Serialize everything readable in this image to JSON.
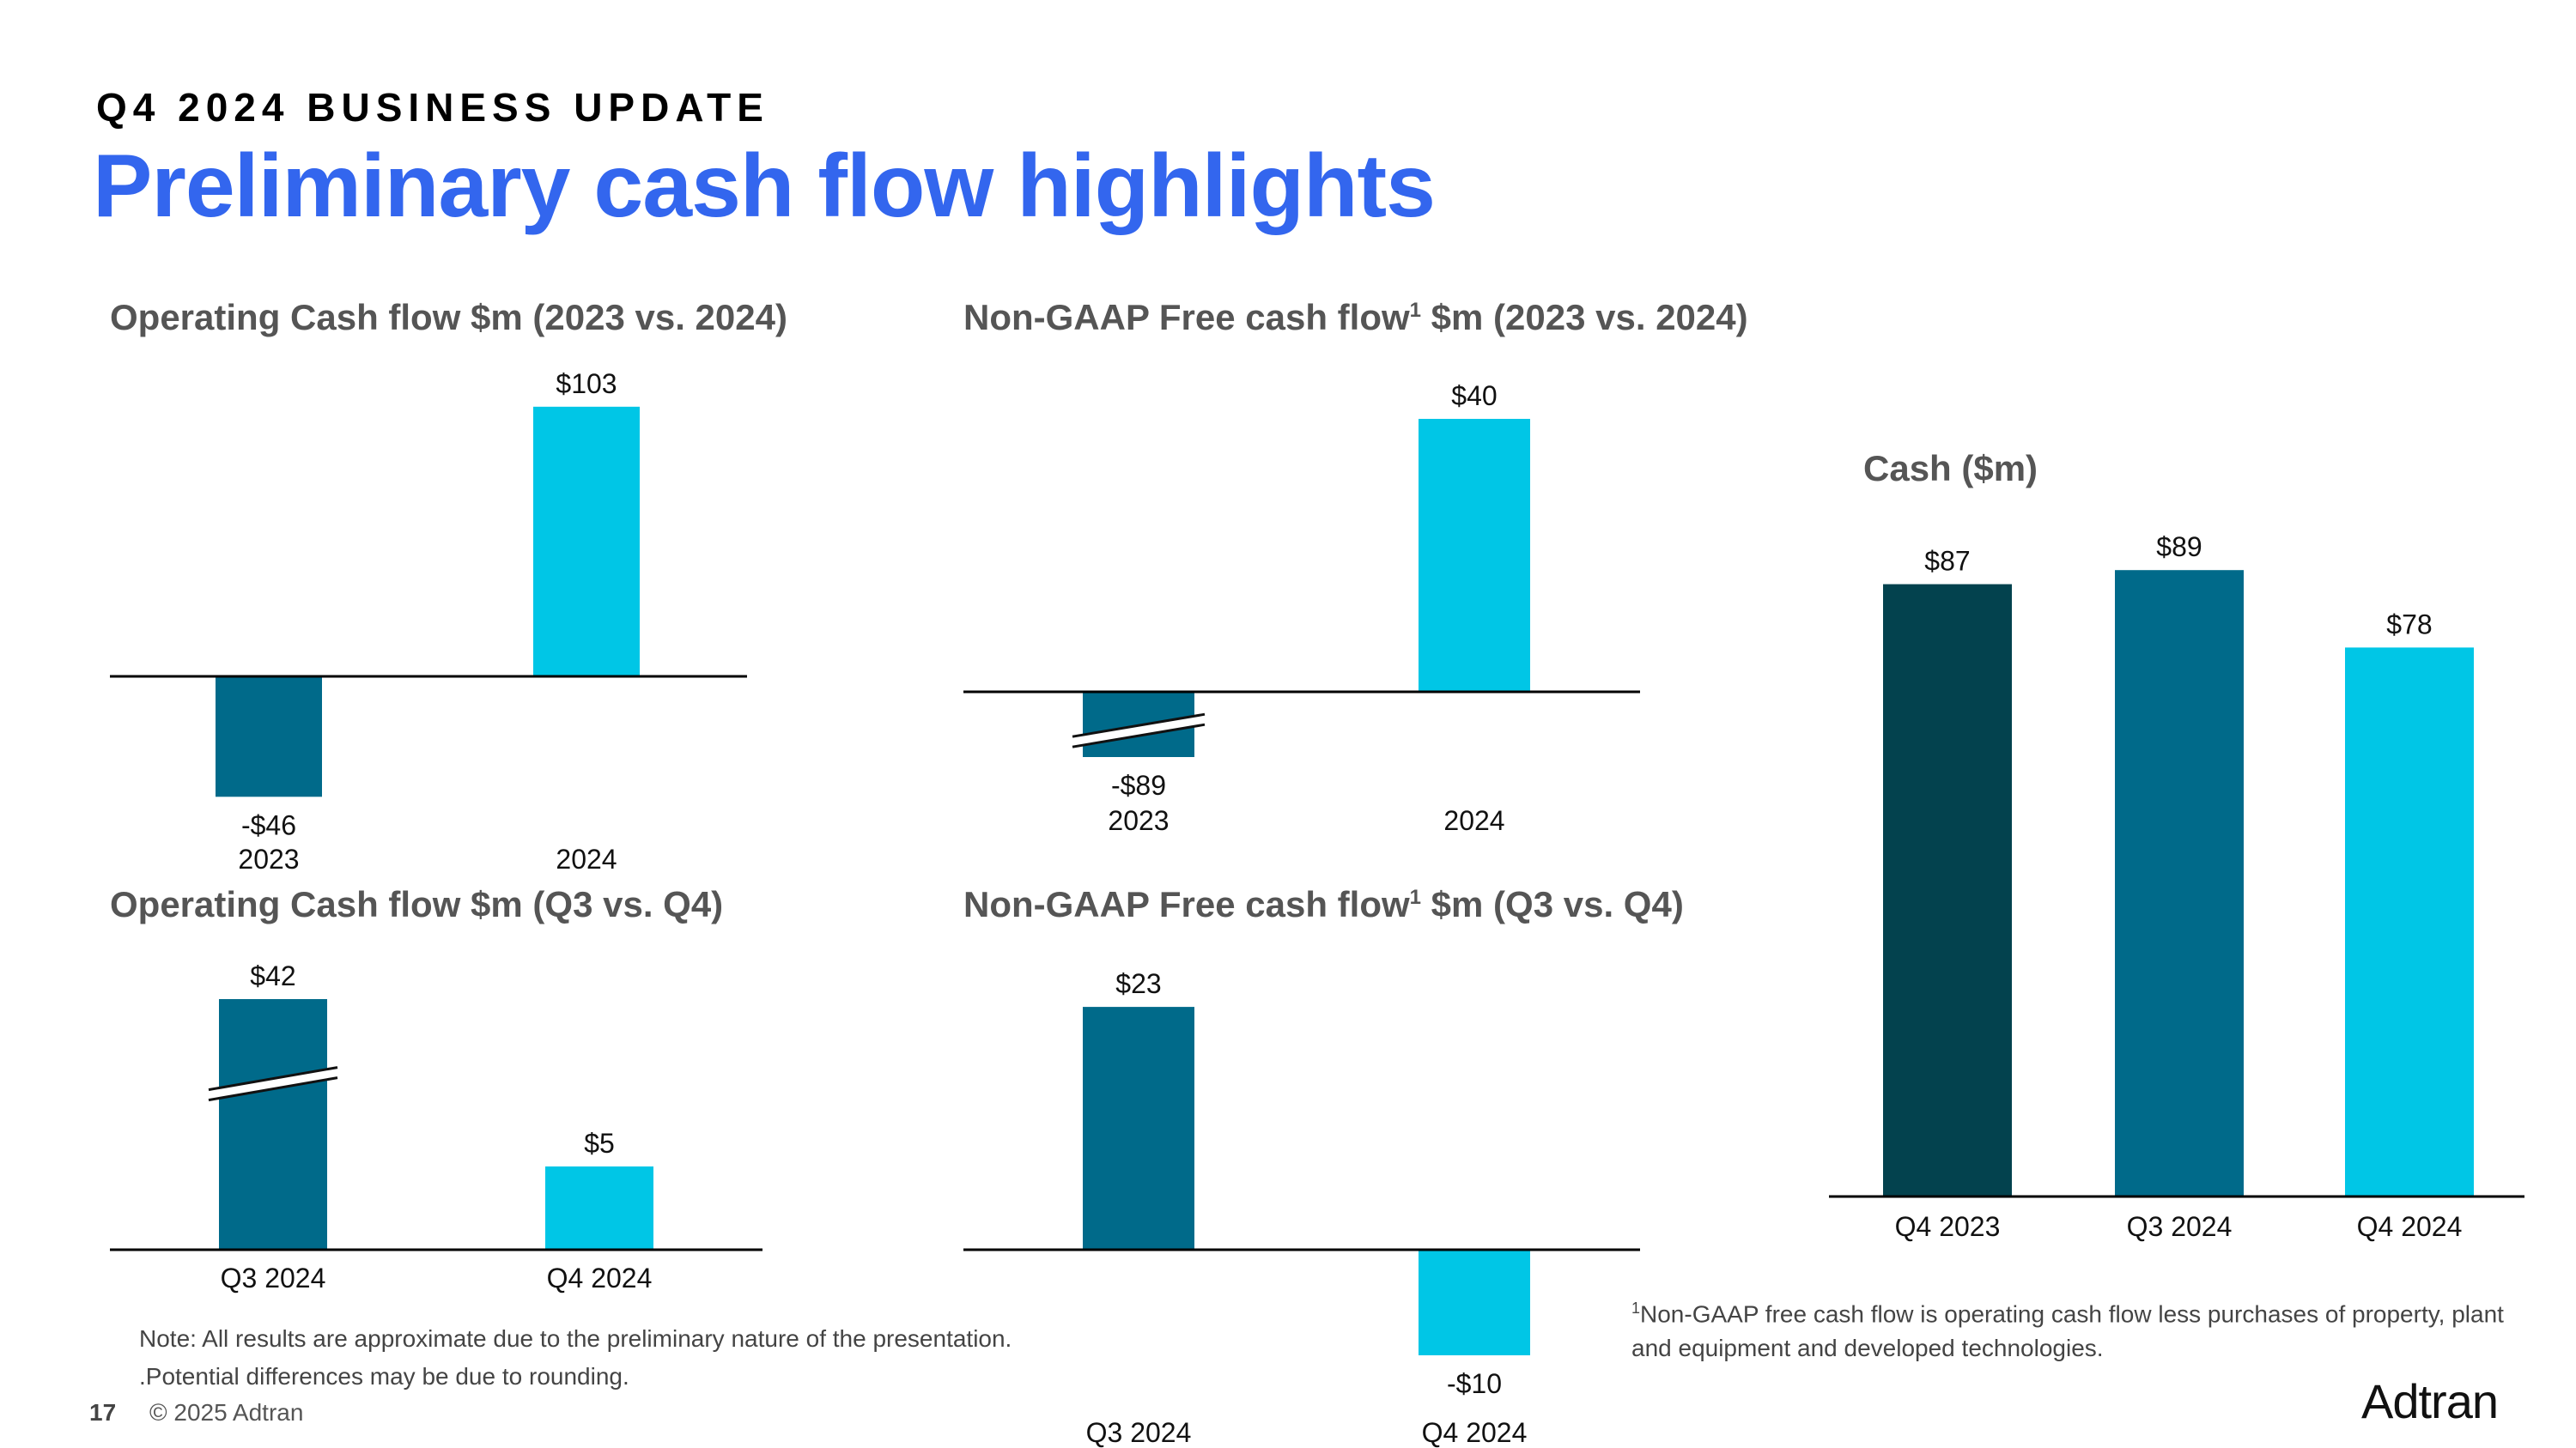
{
  "header": {
    "eyebrow": "Q4 2024 BUSINESS UPDATE",
    "title": "Preliminary cash flow highlights"
  },
  "colors": {
    "title_blue": "#3366ee",
    "dark_teal": "#03424e",
    "mid_teal": "#006a8a",
    "cyan": "#00c6e6",
    "axis": "#000000"
  },
  "chart_data": [
    {
      "id": "ocf-annual",
      "type": "bar",
      "title": "Operating Cash flow $m (2023 vs. 2024)",
      "title_sup": "",
      "categories": [
        "2023",
        "2024"
      ],
      "values": [
        -46,
        103
      ],
      "labels": [
        "-$46",
        "$103"
      ],
      "axis_break": []
    },
    {
      "id": "fcf-annual",
      "type": "bar",
      "title": "Non-GAAP Free cash flow",
      "title_sup": "1",
      "title_suffix": " $m (2023 vs. 2024)",
      "categories": [
        "2023",
        "2024"
      ],
      "values": [
        -89,
        40
      ],
      "labels": [
        "-$89",
        "$40"
      ],
      "axis_break": [
        "2023"
      ]
    },
    {
      "id": "ocf-quarter",
      "type": "bar",
      "title": "Operating Cash flow $m (Q3 vs. Q4)",
      "title_sup": "",
      "categories": [
        "Q3 2024",
        "Q4 2024"
      ],
      "values": [
        42,
        5
      ],
      "labels": [
        "$42",
        "$5"
      ],
      "axis_break": [
        "Q3 2024"
      ]
    },
    {
      "id": "fcf-quarter",
      "type": "bar",
      "title": "Non-GAAP Free cash flow",
      "title_sup": "1",
      "title_suffix": " $m (Q3 vs. Q4)",
      "categories": [
        "Q3 2024",
        "Q4 2024"
      ],
      "values": [
        23,
        -10
      ],
      "labels": [
        "$23",
        "-$10"
      ],
      "axis_break": []
    },
    {
      "id": "cash",
      "type": "bar",
      "title": "Cash ($m)",
      "title_sup": "",
      "categories": [
        "Q4 2023",
        "Q3 2024",
        "Q4 2024"
      ],
      "values": [
        87,
        89,
        78
      ],
      "labels": [
        "$87",
        "$89",
        "$78"
      ],
      "axis_break": []
    }
  ],
  "notes": {
    "line1": "Note: All results are approximate due to the preliminary nature of the presentation.",
    "line2": ".Potential differences may be due to rounding.",
    "footnote_sup": "1",
    "footnote": "Non-GAAP free cash flow is operating cash flow less purchases of property, plant and equipment and developed technologies."
  },
  "footer": {
    "page": "17",
    "copyright": "© 2025 Adtran",
    "logo": "Adtran"
  }
}
